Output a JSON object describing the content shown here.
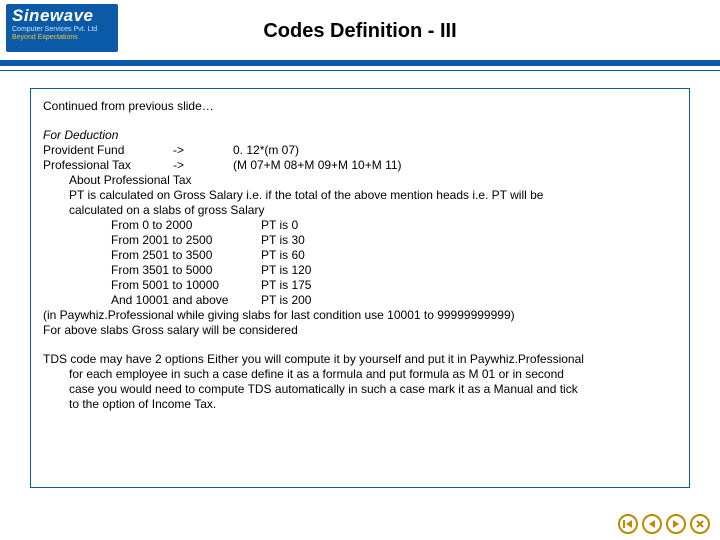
{
  "logo": {
    "brand": "Sinewave",
    "sub": "Computer Services Pvt. Ltd",
    "tag": "Beyond Expectations"
  },
  "title": "Codes Definition - III",
  "continued": "Continued from previous slide…",
  "deduction": {
    "heading": "For Deduction",
    "pf": {
      "label": "Provident Fund",
      "arrow": "->",
      "value": "0. 12*(m 07)"
    },
    "pt": {
      "label": "Professional Tax",
      "arrow": "->",
      "value": "(M 07+M 08+M 09+M 10+M 11)"
    },
    "about": "About Professional Tax",
    "desc1": "PT is calculated on Gross Salary i.e. if the total of the above mention heads i.e. PT will be",
    "desc2": "calculated on a slabs of gross Salary",
    "slabs": [
      {
        "range": "From 0 to 2000",
        "val": "PT is 0"
      },
      {
        "range": "From 2001 to 2500",
        "val": "PT is 30"
      },
      {
        "range": "From 2501 to 3500",
        "val": "PT is 60"
      },
      {
        "range": "From 3501 to 5000",
        "val": "PT is 120"
      },
      {
        "range": "From 5001 to 10000",
        "val": "PT is 175"
      },
      {
        "range": "And 10001 and above",
        "val": "PT is 200"
      }
    ],
    "note1": "(in Paywhiz.Professional while giving slabs for last condition use 10001 to 99999999999)",
    "note2": " For above slabs Gross salary will be considered"
  },
  "tds": {
    "l1": "TDS code may have 2 options Either you will compute it by yourself and put it in Paywhiz.Professional",
    "l2": "for each employee in such a case define it as a formula and put formula as M 01 or in second",
    "l3": "case you would need to compute TDS automatically in such a case mark it as a Manual and tick",
    "l4": "to the option of Income Tax."
  },
  "colors": {
    "accent": "#0b5aa8",
    "icon": "#c08a00"
  }
}
